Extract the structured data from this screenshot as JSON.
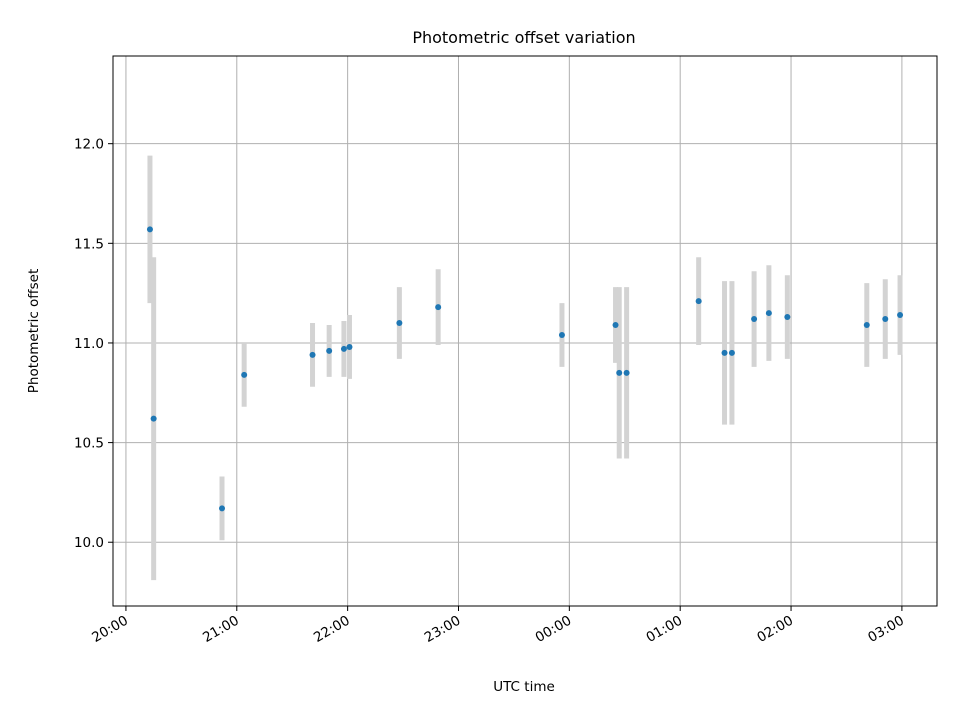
{
  "chart_data": {
    "type": "scatter",
    "title": "Photometric offset variation",
    "xlabel": "UTC time",
    "ylabel": "Photometric offset",
    "x_axis": "time",
    "x_ticks": [
      "20:00",
      "21:00",
      "22:00",
      "23:00",
      "00:00",
      "01:00",
      "02:00",
      "03:00"
    ],
    "y_ticks": [
      "10.0",
      "10.5",
      "11.0",
      "11.5",
      "12.0"
    ],
    "y_tick_values": [
      10.0,
      10.5,
      11.0,
      11.5,
      12.0
    ],
    "xlim": [
      "19:53",
      "03:19"
    ],
    "ylim": [
      9.68,
      12.44
    ],
    "grid": true,
    "point_color": "#1f77b4",
    "errorbar_color": "#d3d3d3",
    "series": [
      {
        "points": [
          {
            "x": "20:13",
            "y": 11.57,
            "err": 0.37
          },
          {
            "x": "20:15",
            "y": 10.62,
            "err": 0.81
          },
          {
            "x": "20:52",
            "y": 10.17,
            "err": 0.16
          },
          {
            "x": "21:04",
            "y": 10.84,
            "err": 0.16
          },
          {
            "x": "21:41",
            "y": 10.94,
            "err": 0.16
          },
          {
            "x": "21:50",
            "y": 10.96,
            "err": 0.13
          },
          {
            "x": "21:58",
            "y": 10.97,
            "err": 0.14
          },
          {
            "x": "22:01",
            "y": 10.98,
            "err": 0.16
          },
          {
            "x": "22:28",
            "y": 11.1,
            "err": 0.18
          },
          {
            "x": "22:49",
            "y": 11.18,
            "err": 0.19
          },
          {
            "x": "23:56",
            "y": 11.04,
            "err": 0.16
          },
          {
            "x": "00:25",
            "y": 11.09,
            "err": 0.19
          },
          {
            "x": "00:27",
            "y": 10.85,
            "err": 0.43
          },
          {
            "x": "00:31",
            "y": 10.85,
            "err": 0.43
          },
          {
            "x": "01:10",
            "y": 11.21,
            "err": 0.22
          },
          {
            "x": "01:24",
            "y": 10.95,
            "err": 0.36
          },
          {
            "x": "01:28",
            "y": 10.95,
            "err": 0.36
          },
          {
            "x": "01:40",
            "y": 11.12,
            "err": 0.24
          },
          {
            "x": "01:48",
            "y": 11.15,
            "err": 0.24
          },
          {
            "x": "01:58",
            "y": 11.13,
            "err": 0.21
          },
          {
            "x": "02:41",
            "y": 11.09,
            "err": 0.21
          },
          {
            "x": "02:51",
            "y": 11.12,
            "err": 0.2
          },
          {
            "x": "02:59",
            "y": 11.14,
            "err": 0.2
          }
        ]
      }
    ]
  }
}
